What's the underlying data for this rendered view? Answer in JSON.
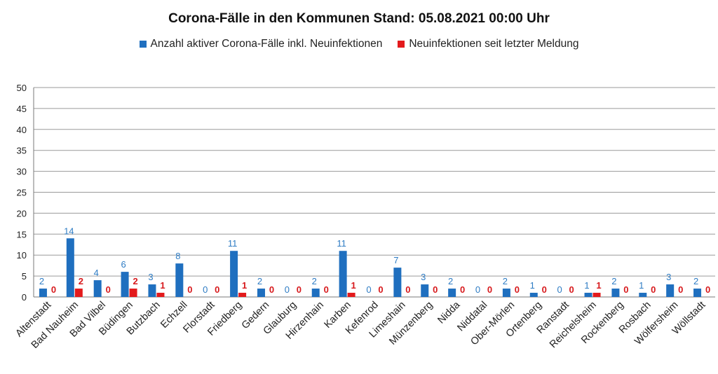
{
  "chart_data": {
    "type": "bar",
    "title": "Corona-Fälle in den Kommunen Stand: 05.08.2021 00:00 Uhr",
    "categories": [
      "Altenstadt",
      "Bad Nauheim",
      "Bad Vilbel",
      "Büdingen",
      "Butzbach",
      "Echzell",
      "Florstadt",
      "Friedberg",
      "Gedern",
      "Glauburg",
      "Hirzenhain",
      "Karben",
      "Kefenrod",
      "Limeshain",
      "Münzenberg",
      "Nidda",
      "Niddatal",
      "Ober-Mörlen",
      "Ortenberg",
      "Ranstadt",
      "Reichelsheim",
      "Rockenberg",
      "Rosbach",
      "Wölfersheim",
      "Wöllstadt"
    ],
    "series": [
      {
        "name": "Anzahl aktiver Corona-Fälle inkl. Neuinfektionen",
        "color": "#1f6fbf",
        "values": [
          2,
          14,
          4,
          6,
          3,
          8,
          0,
          11,
          2,
          0,
          2,
          11,
          0,
          7,
          3,
          2,
          0,
          2,
          1,
          0,
          1,
          2,
          1,
          3,
          2
        ]
      },
      {
        "name": "Neuinfektionen seit letzter Meldung",
        "color": "#e31a1c",
        "values": [
          0,
          2,
          0,
          2,
          1,
          0,
          0,
          1,
          0,
          0,
          0,
          1,
          0,
          0,
          0,
          0,
          0,
          0,
          0,
          0,
          1,
          0,
          0,
          0,
          0
        ]
      }
    ],
    "xlabel": "",
    "ylabel": "",
    "ylim": [
      0,
      50
    ],
    "yticks": [
      0,
      5,
      10,
      15,
      20,
      25,
      30,
      35,
      40,
      45,
      50
    ],
    "grid": true,
    "legend": "top",
    "label_colors": {
      "blue": "#2e7cc4",
      "red": "#d7191c"
    }
  }
}
